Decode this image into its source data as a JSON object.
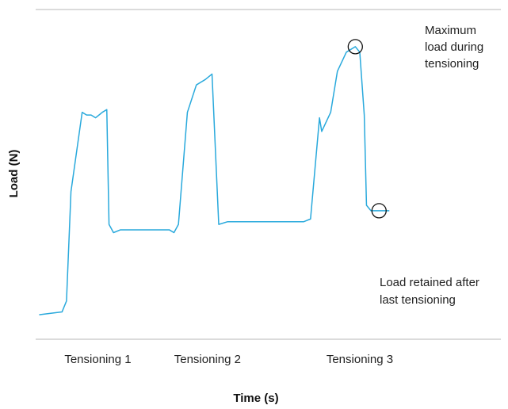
{
  "chart_data": {
    "type": "line",
    "title": "",
    "xlabel": "Time (s)",
    "ylabel": "Load (N)",
    "x_tick_labels": [
      "Tensioning 1",
      "Tensioning 2",
      "Tensioning 3"
    ],
    "tick_positions": [
      0.13,
      0.375,
      0.715
    ],
    "xlim": [
      0,
      1
    ],
    "ylim": [
      0,
      1
    ],
    "grid": false,
    "series": [
      {
        "values": [
          [
            0.0,
            0.0
          ],
          [
            0.05,
            0.01
          ],
          [
            0.06,
            0.05
          ],
          [
            0.07,
            0.45
          ],
          [
            0.095,
            0.74
          ],
          [
            0.105,
            0.73
          ],
          [
            0.115,
            0.73
          ],
          [
            0.125,
            0.72
          ],
          [
            0.14,
            0.74
          ],
          [
            0.15,
            0.75
          ],
          [
            0.155,
            0.33
          ],
          [
            0.165,
            0.3
          ],
          [
            0.18,
            0.31
          ],
          [
            0.22,
            0.31
          ],
          [
            0.29,
            0.31
          ],
          [
            0.3,
            0.3
          ],
          [
            0.31,
            0.33
          ],
          [
            0.33,
            0.74
          ],
          [
            0.35,
            0.84
          ],
          [
            0.37,
            0.86
          ],
          [
            0.385,
            0.88
          ],
          [
            0.4,
            0.33
          ],
          [
            0.42,
            0.34
          ],
          [
            0.47,
            0.34
          ],
          [
            0.56,
            0.34
          ],
          [
            0.59,
            0.34
          ],
          [
            0.605,
            0.35
          ],
          [
            0.625,
            0.72
          ],
          [
            0.63,
            0.67
          ],
          [
            0.65,
            0.74
          ],
          [
            0.665,
            0.89
          ],
          [
            0.685,
            0.96
          ],
          [
            0.705,
            0.98
          ],
          [
            0.715,
            0.96
          ],
          [
            0.725,
            0.73
          ],
          [
            0.73,
            0.4
          ],
          [
            0.74,
            0.38
          ],
          [
            0.76,
            0.38
          ],
          [
            0.78,
            0.38
          ]
        ],
        "color": "#29a9dc"
      }
    ],
    "annotations": [
      {
        "text": [
          "Maximum",
          "load during",
          "tensioning"
        ],
        "x": 0.705,
        "y": 0.98
      },
      {
        "text": [
          "Load retained after",
          "last tensioning"
        ],
        "x": 0.758,
        "y": 0.38
      }
    ]
  }
}
